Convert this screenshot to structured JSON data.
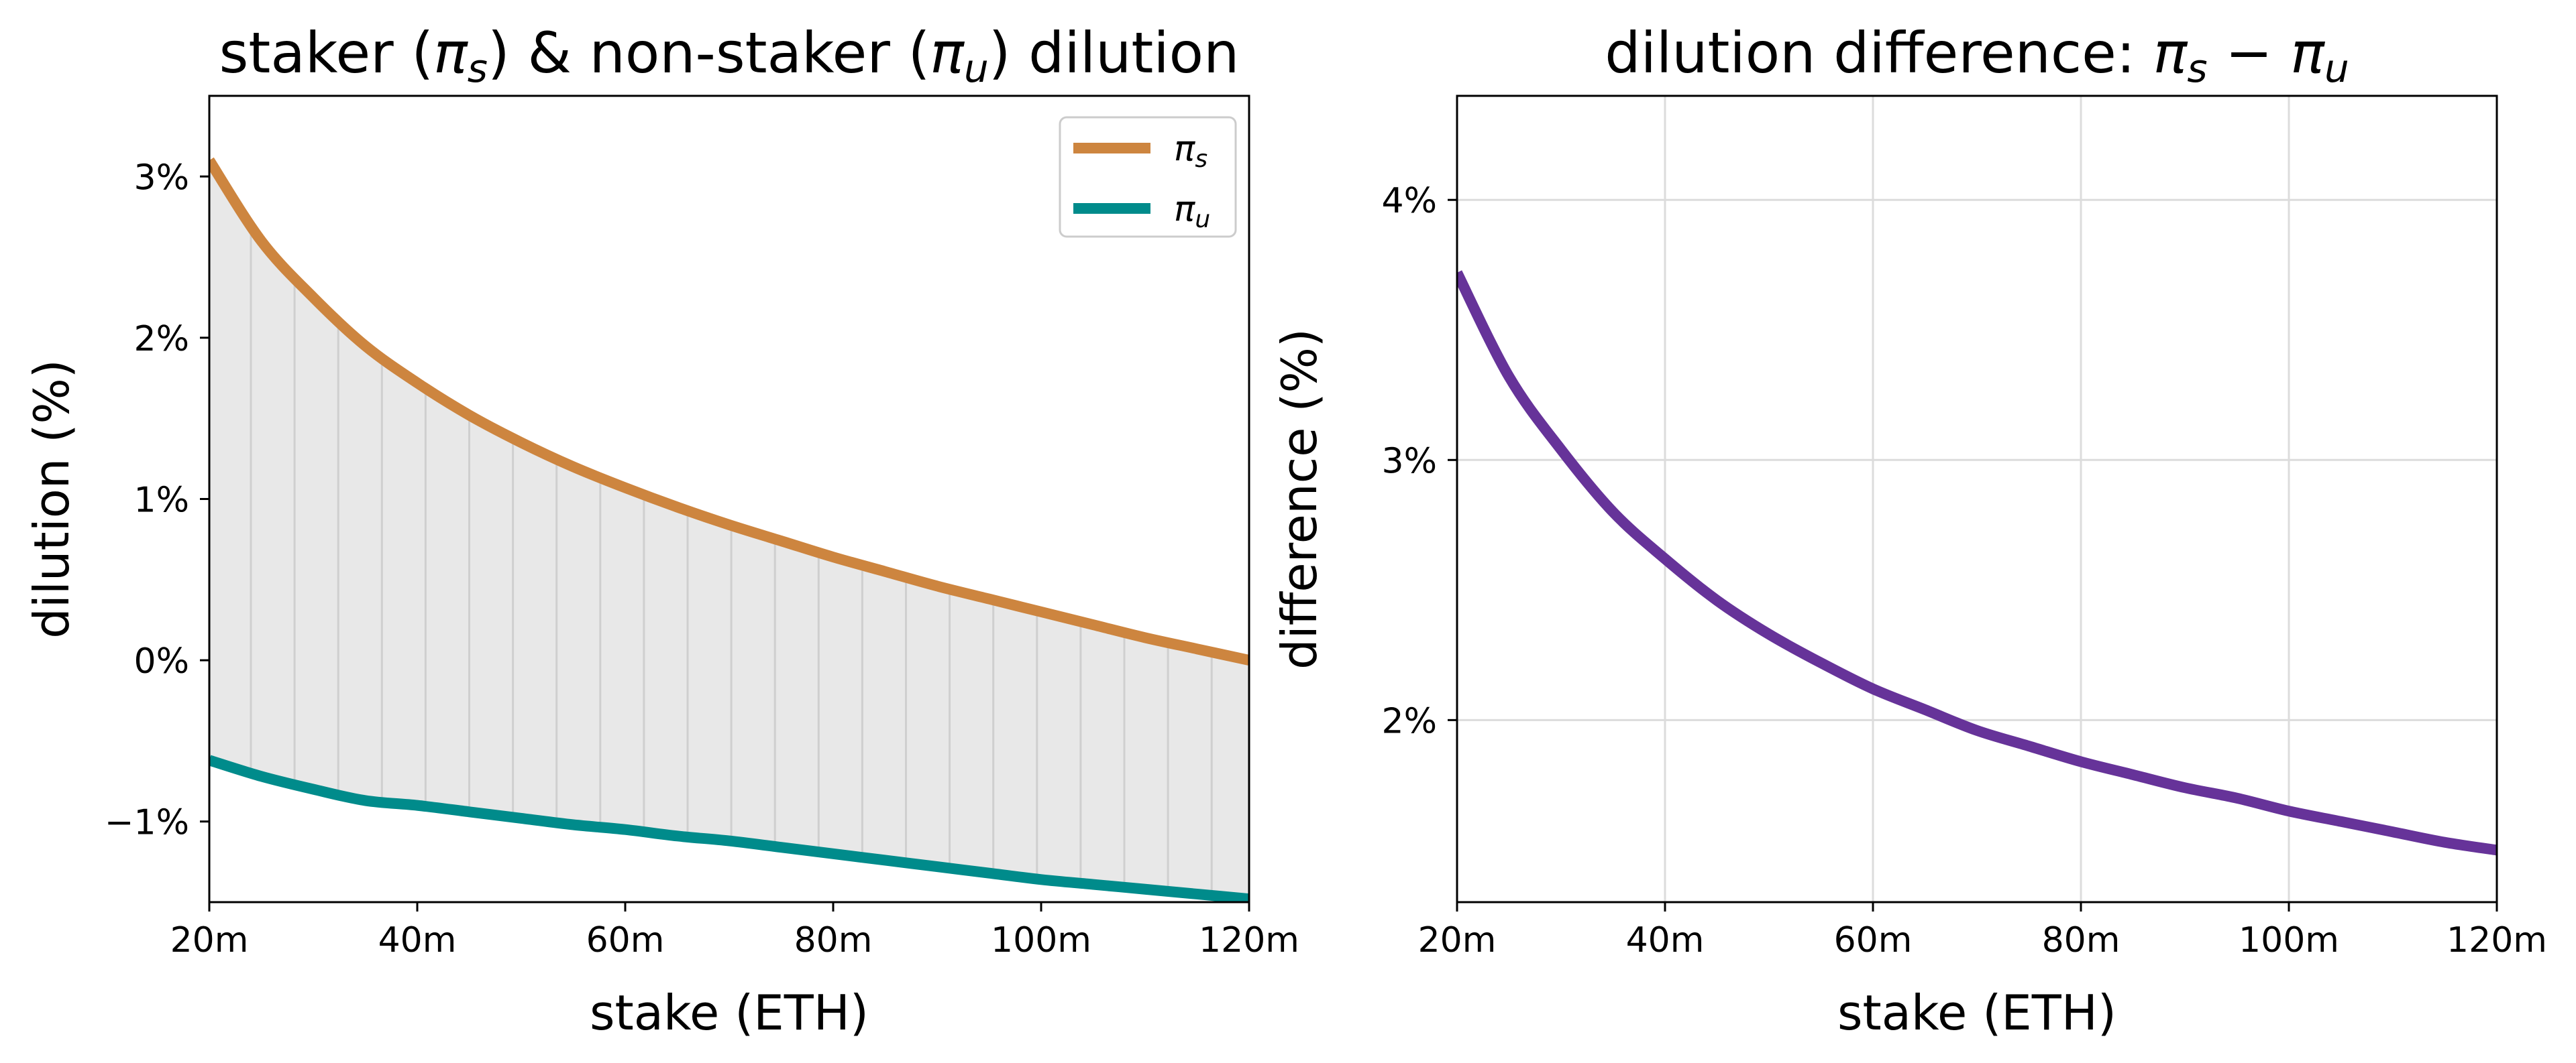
{
  "chart_data": [
    {
      "type": "area",
      "title": "staker (πs) & non-staker (πu) dilution",
      "title_parts": [
        "staker (",
        "π",
        "s",
        ") & non-staker (",
        "π",
        "u",
        ") dilution"
      ],
      "xlabel": "stake (ETH)",
      "ylabel": "dilution (%)",
      "xlim": [
        20,
        120
      ],
      "ylim": [
        -1.5,
        3.5
      ],
      "x_unit": "million ETH",
      "x_ticks": [
        20,
        40,
        60,
        80,
        100,
        120
      ],
      "x_tick_labels": [
        "20m",
        "40m",
        "60m",
        "80m",
        "100m",
        "120m"
      ],
      "y_ticks": [
        -1,
        0,
        1,
        2,
        3
      ],
      "y_tick_labels": [
        "−1%",
        "0%",
        "1%",
        "2%",
        "3%"
      ],
      "grid": false,
      "legend_position": "top-right",
      "fill_between_series": true,
      "x": [
        20,
        25,
        30,
        35,
        40,
        45,
        50,
        55,
        60,
        65,
        70,
        75,
        80,
        85,
        90,
        95,
        100,
        105,
        110,
        115,
        120
      ],
      "series": [
        {
          "name": "πs",
          "legend_symbol": "π",
          "legend_sub": "s",
          "color": "#cd853f",
          "values": [
            3.1,
            2.6,
            2.25,
            1.95,
            1.72,
            1.52,
            1.35,
            1.2,
            1.07,
            0.95,
            0.84,
            0.74,
            0.64,
            0.55,
            0.46,
            0.38,
            0.3,
            0.22,
            0.14,
            0.07,
            0.0
          ]
        },
        {
          "name": "πu",
          "legend_symbol": "π",
          "legend_sub": "u",
          "color": "#008b8b",
          "values": [
            -0.62,
            -0.72,
            -0.8,
            -0.87,
            -0.9,
            -0.94,
            -0.98,
            -1.02,
            -1.05,
            -1.09,
            -1.12,
            -1.16,
            -1.2,
            -1.24,
            -1.28,
            -1.32,
            -1.36,
            -1.39,
            -1.42,
            -1.45,
            -1.48
          ]
        }
      ]
    },
    {
      "type": "line",
      "title": "dilution difference: πs − πu",
      "title_parts": [
        "dilution difference: ",
        "π",
        "s",
        " − ",
        "π",
        "u",
        ""
      ],
      "xlabel": "stake (ETH)",
      "ylabel": "difference (%)",
      "xlim": [
        20,
        120
      ],
      "ylim": [
        1.3,
        4.4
      ],
      "x_unit": "million ETH",
      "x_ticks": [
        20,
        40,
        60,
        80,
        100,
        120
      ],
      "x_tick_labels": [
        "20m",
        "40m",
        "60m",
        "80m",
        "100m",
        "120m"
      ],
      "y_ticks": [
        2,
        3,
        4
      ],
      "y_tick_labels": [
        "2%",
        "3%",
        "4%"
      ],
      "grid": true,
      "x": [
        20,
        25,
        30,
        35,
        40,
        45,
        50,
        55,
        60,
        65,
        70,
        75,
        80,
        85,
        90,
        95,
        100,
        105,
        110,
        115,
        120
      ],
      "series": [
        {
          "color": "#663399",
          "values": [
            3.72,
            3.32,
            3.04,
            2.8,
            2.62,
            2.46,
            2.33,
            2.22,
            2.12,
            2.04,
            1.96,
            1.9,
            1.84,
            1.79,
            1.74,
            1.7,
            1.65,
            1.61,
            1.57,
            1.53,
            1.5
          ]
        }
      ]
    }
  ]
}
